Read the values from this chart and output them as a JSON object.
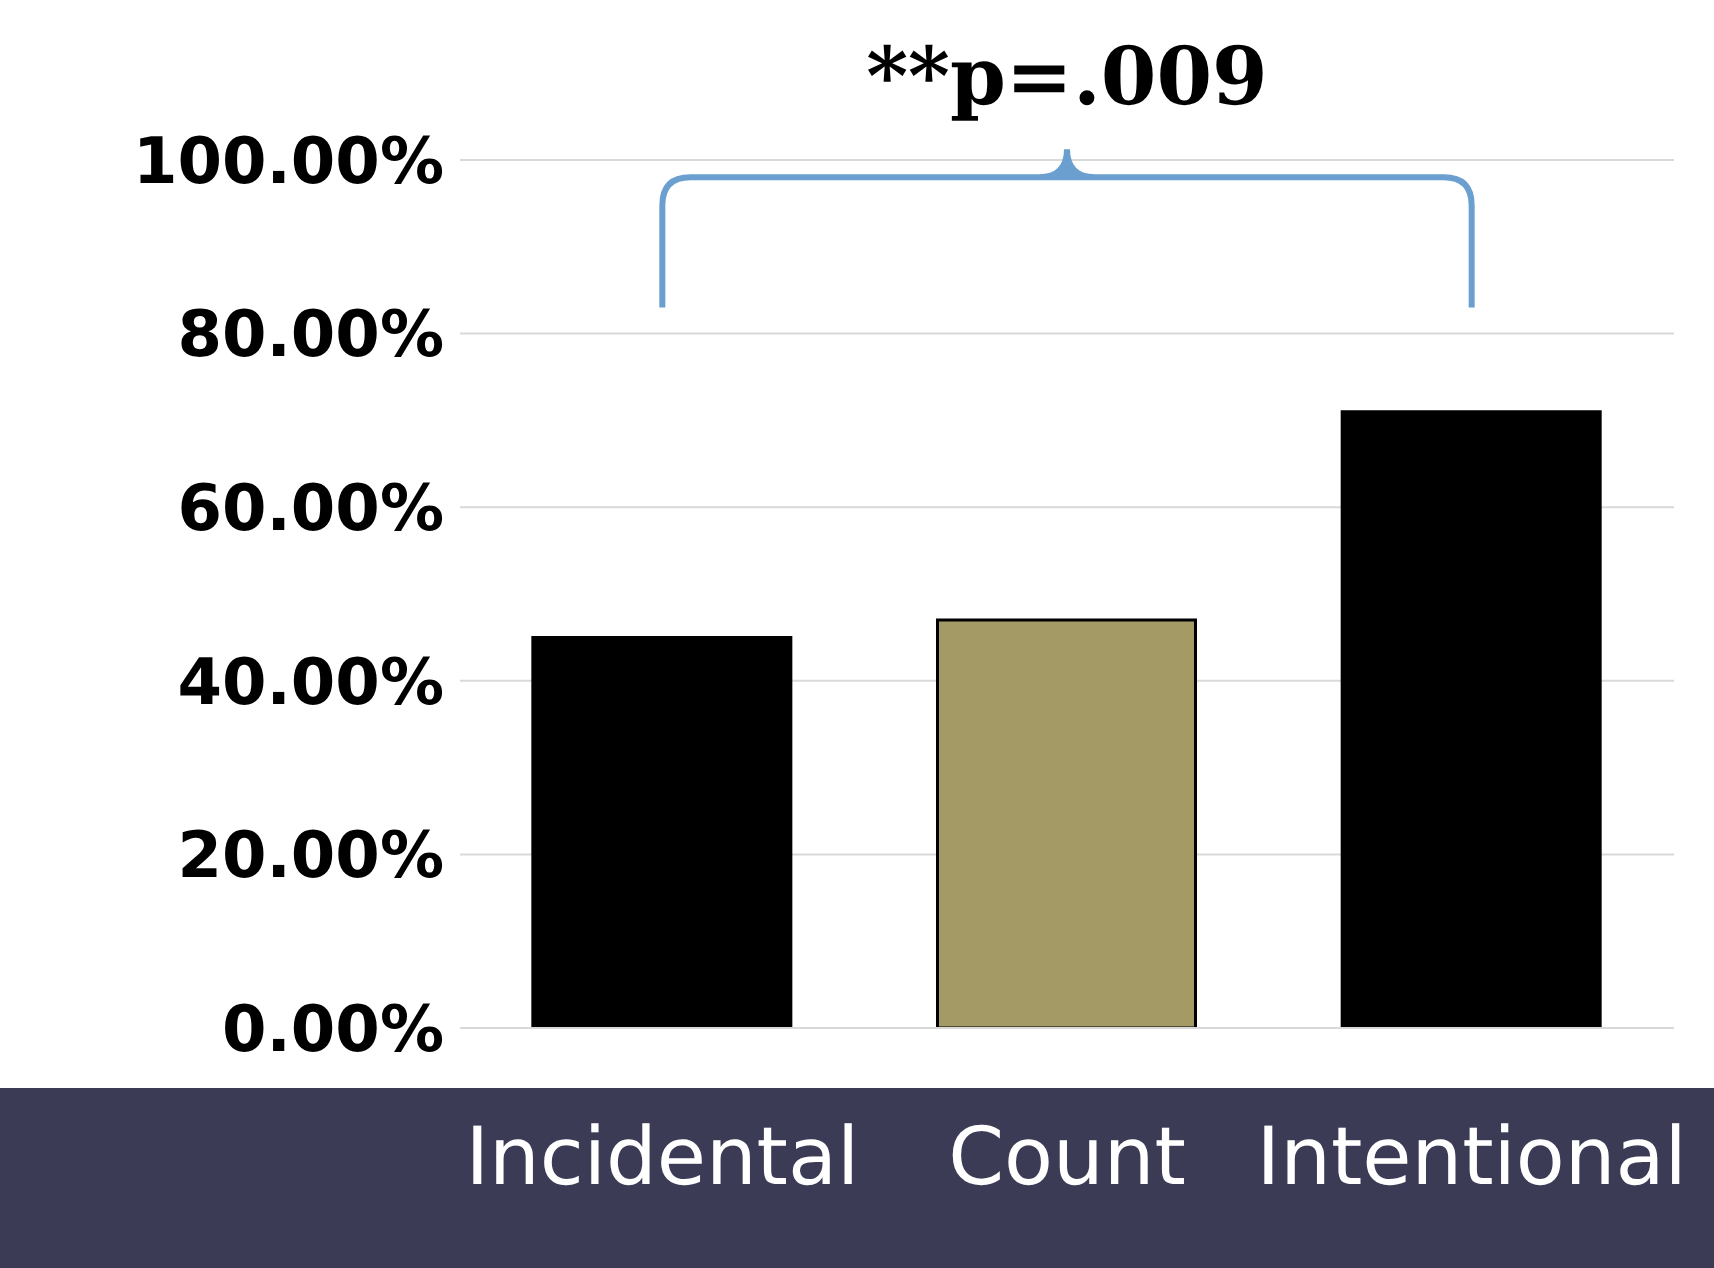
{
  "chart_data": {
    "type": "bar",
    "categories": [
      "Incidental",
      "Count",
      "Intentional"
    ],
    "values": [
      45,
      47,
      71
    ],
    "colors": [
      "#000000",
      "#a39a66",
      "#000000"
    ],
    "ylim": [
      0,
      100
    ],
    "yticks": [
      {
        "value": 0,
        "label": "0.00%"
      },
      {
        "value": 20,
        "label": "20.00%"
      },
      {
        "value": 40,
        "label": "40.00%"
      },
      {
        "value": 60,
        "label": "60.00%"
      },
      {
        "value": 80,
        "label": "80.00%"
      },
      {
        "value": 100,
        "label": "100.00%"
      }
    ],
    "grid": "y",
    "annotations": [
      "**p=.009"
    ]
  }
}
